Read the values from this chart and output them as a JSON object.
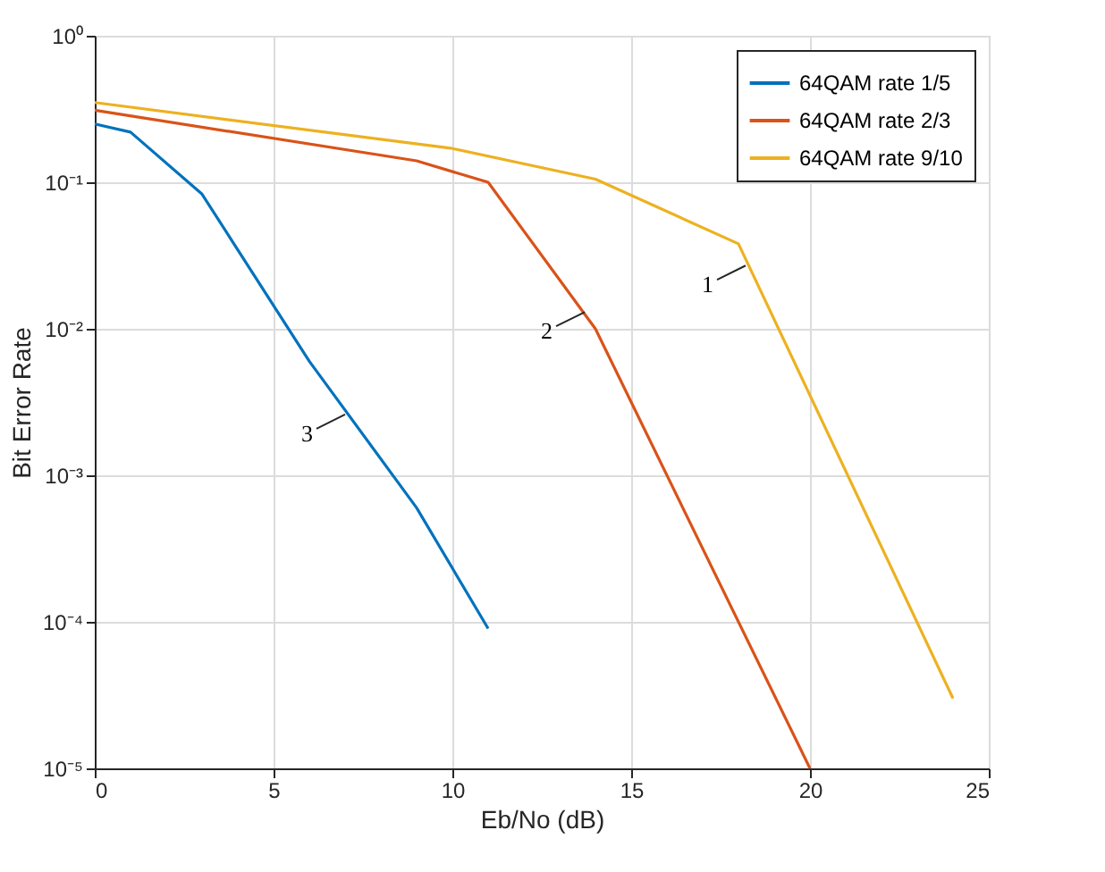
{
  "chart_data": {
    "type": "line",
    "xlabel": "Eb/No (dB)",
    "ylabel": "Bit Error Rate",
    "xlim": [
      0,
      25
    ],
    "xticks": [
      0,
      5,
      10,
      15,
      20,
      25
    ],
    "ylim": [
      1e-05,
      1
    ],
    "yticks": [
      {
        "value": 1e-05,
        "label": "10⁻⁵"
      },
      {
        "value": 0.0001,
        "label": "10⁻⁴"
      },
      {
        "value": 0.001,
        "label": "10⁻³"
      },
      {
        "value": 0.01,
        "label": "10⁻²"
      },
      {
        "value": 0.1,
        "label": "10⁻¹"
      },
      {
        "value": 1,
        "label": "10⁰"
      }
    ],
    "log": "y",
    "grid": true,
    "legend": "top right",
    "marker": "none",
    "line_style": "solid",
    "series": [
      {
        "name": "64QAM rate 1/5",
        "color": "#0072bd",
        "x": [
          0,
          1,
          3,
          6,
          9,
          11
        ],
        "values": [
          0.25,
          0.22,
          0.083,
          0.006,
          0.0006,
          9e-05
        ]
      },
      {
        "name": "64QAM rate 2/3",
        "color": "#d95319",
        "x": [
          0,
          9,
          11,
          14,
          20
        ],
        "values": [
          0.31,
          0.14,
          0.1,
          0.01,
          1e-05
        ]
      },
      {
        "name": "64QAM rate 9/10",
        "color": "#edb120",
        "x": [
          0,
          10,
          14,
          18,
          24
        ],
        "values": [
          0.35,
          0.17,
          0.105,
          0.038,
          3e-05
        ]
      }
    ],
    "annotations": [
      {
        "text": "1",
        "x": 18.2,
        "y": 0.027
      },
      {
        "text": "2",
        "x": 13.7,
        "y": 0.013
      },
      {
        "text": "3",
        "x": 7,
        "y": 0.0026
      }
    ]
  }
}
